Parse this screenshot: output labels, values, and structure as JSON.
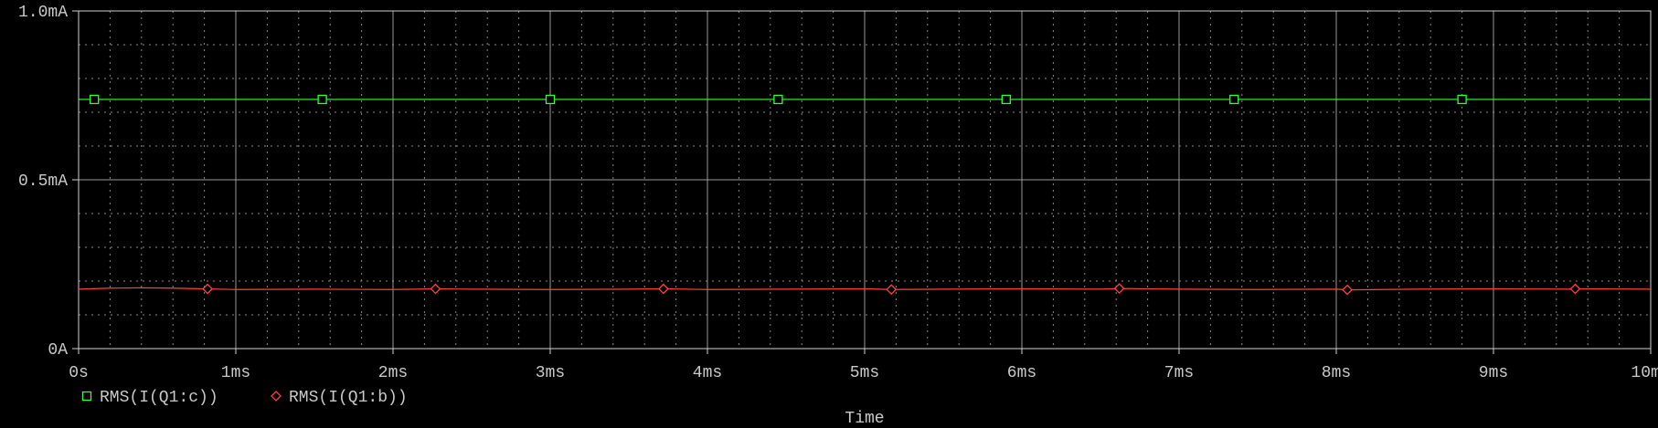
{
  "chart_data": {
    "type": "line",
    "xlabel": "Time",
    "ylabel": "",
    "x_unit": "ms",
    "x_ticks": [
      0,
      1,
      2,
      3,
      4,
      5,
      6,
      7,
      8,
      9,
      10
    ],
    "x_tick_labels": [
      "0s",
      "1ms",
      "2ms",
      "3ms",
      "4ms",
      "5ms",
      "6ms",
      "7ms",
      "8ms",
      "9ms",
      "10ms"
    ],
    "xlim": [
      0,
      10
    ],
    "y_unit": "mA",
    "y_ticks": [
      0,
      0.5,
      1.0
    ],
    "y_tick_labels": [
      "0A",
      "0.5mA",
      "1.0mA"
    ],
    "ylim": [
      0,
      1.0
    ],
    "grid": true,
    "legend_position": "bottom-left",
    "series": [
      {
        "name": "RMS(I(Q1:c))",
        "color": "#33ff33",
        "marker": "square",
        "x": [
          0,
          0.1,
          0.5,
          1.0,
          1.55,
          2.0,
          3.0,
          4.0,
          4.45,
          5.0,
          5.9,
          6.0,
          7.0,
          7.35,
          8.0,
          8.8,
          9.0,
          10.0
        ],
        "y": [
          0.738,
          0.738,
          0.738,
          0.738,
          0.738,
          0.738,
          0.738,
          0.738,
          0.738,
          0.738,
          0.738,
          0.738,
          0.738,
          0.738,
          0.738,
          0.738,
          0.738,
          0.738
        ],
        "marker_x": [
          0.1,
          1.55,
          3.0,
          4.45,
          5.9,
          7.35,
          8.8
        ]
      },
      {
        "name": "RMS(I(Q1:b))",
        "color": "#ff4040",
        "marker": "diamond",
        "x": [
          0,
          0.2,
          0.4,
          0.6,
          0.8,
          1.0,
          1.5,
          2.0,
          2.27,
          2.5,
          3.0,
          3.5,
          3.72,
          4.0,
          4.5,
          5.0,
          5.17,
          5.5,
          6.0,
          6.5,
          6.62,
          7.0,
          7.5,
          8.0,
          8.07,
          8.5,
          9.0,
          9.5,
          9.52,
          10.0
        ],
        "y": [
          0.176,
          0.179,
          0.18,
          0.179,
          0.177,
          0.175,
          0.176,
          0.175,
          0.177,
          0.176,
          0.175,
          0.176,
          0.177,
          0.175,
          0.176,
          0.177,
          0.175,
          0.176,
          0.177,
          0.176,
          0.178,
          0.176,
          0.175,
          0.176,
          0.174,
          0.176,
          0.177,
          0.176,
          0.177,
          0.176
        ],
        "marker_x": [
          0.82,
          2.27,
          3.72,
          5.17,
          6.62,
          8.07,
          9.52
        ]
      }
    ]
  }
}
